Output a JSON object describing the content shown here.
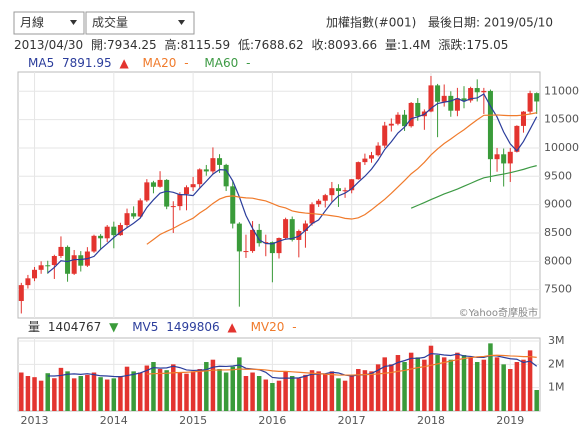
{
  "header": {
    "interval": "月線",
    "indicator": "成交量",
    "index_name": "加權指數(#001)",
    "last_date": "最後日期: 2019/05/10",
    "quote": [
      "2013/04/30",
      "開:7934.25",
      "高:8115.59",
      "低:7688.62",
      "收:8093.66",
      "量:1.4M",
      "漲跌:175.05"
    ],
    "up_arrow": "▲",
    "down_arrow": "▼",
    "missing": "-"
  },
  "chart_data": {
    "type": "candlestick",
    "categories": [
      null,
      null,
      "2013",
      null,
      null,
      null,
      null,
      null,
      null,
      null,
      null,
      null,
      null,
      null,
      "2014",
      null,
      null,
      null,
      null,
      null,
      null,
      null,
      null,
      null,
      null,
      null,
      "2015",
      null,
      null,
      null,
      null,
      null,
      null,
      null,
      null,
      null,
      null,
      null,
      "2016",
      null,
      null,
      null,
      null,
      null,
      null,
      null,
      null,
      null,
      null,
      null,
      "2017",
      null,
      null,
      null,
      null,
      null,
      null,
      null,
      null,
      null,
      null,
      null,
      "2018",
      null,
      null,
      null,
      null,
      null,
      null,
      null,
      null,
      null,
      null,
      null,
      "2019",
      null,
      null,
      null,
      null
    ],
    "open": [
      7300,
      7580,
      7700,
      7850,
      7930,
      7934.25,
      8094,
      8254,
      7780,
      8107,
      7923,
      8173,
      8450,
      8406,
      8611,
      8462,
      8640,
      8849,
      8791,
      9075,
      9393,
      9315,
      9436,
      8966,
      8974,
      9187,
      9307,
      9361,
      9622,
      9586,
      9820,
      9701,
      9323,
      8665,
      8175,
      8181,
      8554,
      8320,
      8338,
      8145,
      8411,
      8744,
      8377,
      8535,
      8667,
      9007,
      9069,
      9167,
      9290,
      9240,
      9254,
      9448,
      9750,
      9812,
      9872,
      10041,
      10395,
      10427,
      10586,
      10384,
      10794,
      10560,
      10643,
      11104,
      10815,
      10919,
      10657,
      10875,
      10837,
      11057,
      10983,
      11006,
      9802,
      9888,
      9727,
      9932,
      10389,
      10641,
      10967
    ],
    "high": [
      7620,
      7760,
      7900,
      8000,
      8010,
      8115.59,
      8440,
      8280,
      8200,
      8180,
      8250,
      8470,
      8480,
      8640,
      8700,
      8680,
      8930,
      8970,
      9110,
      9450,
      9420,
      9590,
      9450,
      9060,
      9220,
      9340,
      9490,
      9640,
      9700,
      10010,
      9890,
      9720,
      9420,
      8690,
      8470,
      8710,
      8660,
      8470,
      8350,
      8420,
      8770,
      8790,
      8560,
      8720,
      9040,
      9100,
      9190,
      9400,
      9360,
      9300,
      9450,
      9760,
      9900,
      9930,
      10100,
      10460,
      10520,
      10630,
      10670,
      10810,
      10880,
      10680,
      11270,
      11130,
      11120,
      11000,
      11060,
      11090,
      11080,
      11210,
      11060,
      11030,
      10000,
      9990,
      10000,
      10400,
      10650,
      11010,
      10980
    ],
    "low": [
      7080,
      7520,
      7650,
      7780,
      7780,
      7688.62,
      8060,
      7640,
      7760,
      7820,
      7900,
      8150,
      8220,
      8340,
      8230,
      8450,
      8590,
      8750,
      8780,
      9050,
      9200,
      9300,
      8920,
      8500,
      8900,
      8900,
      9240,
      9300,
      9510,
      9540,
      9560,
      9240,
      8580,
      7200,
      8060,
      8150,
      8260,
      8090,
      7630,
      8050,
      8380,
      8350,
      8070,
      8240,
      8630,
      8960,
      8950,
      9050,
      8960,
      9120,
      9200,
      9440,
      9700,
      9740,
      9850,
      10000,
      10290,
      10400,
      10300,
      10360,
      10480,
      10320,
      10630,
      10190,
      10730,
      10550,
      10560,
      10700,
      10800,
      10820,
      10600,
      9400,
      9580,
      9320,
      9400,
      9920,
      10270,
      10600,
      10600
    ],
    "close": [
      7580,
      7700,
      7850,
      7930,
      7920,
      8093.66,
      8254,
      7780,
      8107,
      7923,
      8173,
      8450,
      8406,
      8611,
      8462,
      8640,
      8849,
      8791,
      9075,
      9393,
      9315,
      9436,
      8966,
      8974,
      9187,
      9307,
      9361,
      9622,
      9586,
      9820,
      9701,
      9323,
      8665,
      8175,
      8181,
      8554,
      8320,
      8338,
      8145,
      8411,
      8744,
      8377,
      8535,
      8667,
      9007,
      9069,
      9167,
      9290,
      9240,
      9254,
      9448,
      9750,
      9812,
      9872,
      10041,
      10395,
      10427,
      10586,
      10384,
      10794,
      10560,
      10643,
      11104,
      10815,
      10919,
      10657,
      10875,
      10837,
      11057,
      10983,
      11006,
      9802,
      9888,
      9727,
      9932,
      10389,
      10641,
      10967,
      10820
    ],
    "up_color": "#e3342f",
    "down_color": "#3a9b3a",
    "ylim": [
      7000,
      11340
    ],
    "yticks": [
      7500,
      8000,
      8500,
      9000,
      9500,
      10000,
      10500,
      11000
    ],
    "grid": true,
    "series": [
      {
        "name": "MA5",
        "color": "#2c3e9c",
        "values": [
          null,
          null,
          null,
          null,
          7796,
          7891.95,
          8010,
          7996,
          8031,
          8032,
          8047,
          8087,
          8212,
          8313,
          8420,
          8514,
          8594,
          8671,
          8763,
          8950,
          9085,
          9202,
          9237,
          9217,
          9176,
          9174,
          9159,
          9290,
          9413,
          9539,
          9618,
          9610,
          9419,
          9137,
          8809,
          8580,
          8379,
          8314,
          8308,
          8354,
          8392,
          8403,
          8442,
          8547,
          8666,
          8731,
          8889,
          9040,
          9155,
          9204,
          9280,
          9396,
          9501,
          9627,
          9785,
          9974,
          10109,
          10264,
          10367,
          10517,
          10550,
          10593,
          10697,
          10783,
          10808,
          10828,
          10874,
          10821,
          10869,
          10882,
          10952,
          10737,
          10547,
          10281,
          10071,
          9948,
          10115,
          10331,
          10550
        ]
      },
      {
        "name": "MA20",
        "color": "#f07b2c",
        "values": [
          null,
          null,
          null,
          null,
          null,
          null,
          null,
          null,
          null,
          null,
          null,
          null,
          null,
          null,
          null,
          null,
          null,
          null,
          null,
          8300,
          8385,
          8473,
          8529,
          8581,
          8645,
          8705,
          8761,
          8853,
          8927,
          9021,
          9098,
          9141,
          9154,
          9133,
          9119,
          9114,
          9088,
          9065,
          9019,
          8970,
          8941,
          8888,
          8866,
          8851,
          8842,
          8830,
          8820,
          8804,
          8787,
          8758,
          8746,
          8767,
          8824,
          8909,
          9002,
          9094,
          9199,
          9312,
          9424,
          9543,
          9634,
          9747,
          9876,
          9983,
          10079,
          10158,
          10243,
          10321,
          10412,
          10498,
          10576,
          10578,
          10582,
          10575,
          10570,
          10570,
          10580,
          10599,
          10621
        ]
      },
      {
        "name": "MA60",
        "color": "#3d9a44",
        "values": [
          null,
          null,
          null,
          null,
          null,
          null,
          null,
          null,
          null,
          null,
          null,
          null,
          null,
          null,
          null,
          null,
          null,
          null,
          null,
          null,
          null,
          null,
          null,
          null,
          null,
          null,
          null,
          null,
          null,
          null,
          null,
          null,
          null,
          null,
          null,
          null,
          null,
          null,
          null,
          null,
          null,
          null,
          null,
          null,
          null,
          null,
          null,
          null,
          null,
          null,
          null,
          null,
          null,
          null,
          null,
          null,
          null,
          null,
          null,
          8938,
          8987,
          9036,
          9090,
          9138,
          9189,
          9231,
          9275,
          9326,
          9375,
          9426,
          9473,
          9495,
          9520,
          9539,
          9564,
          9593,
          9622,
          9659,
          9688
        ]
      }
    ],
    "volume": {
      "name": "量",
      "values": [
        1650000,
        1500000,
        1450000,
        1300000,
        1620000,
        1404767,
        1850000,
        1700000,
        1400000,
        1500000,
        1550000,
        1650000,
        1450000,
        1350000,
        1400000,
        1500000,
        1900000,
        1700000,
        1650000,
        1950000,
        2100000,
        1800000,
        1750000,
        2000000,
        1650000,
        1600000,
        1700000,
        1800000,
        2100000,
        2200000,
        1800000,
        1650000,
        1900000,
        2300000,
        1500000,
        1650000,
        1500000,
        1350000,
        1200000,
        1300000,
        1700000,
        1500000,
        1400000,
        1550000,
        1750000,
        1700000,
        1600000,
        1700000,
        1400000,
        1300000,
        1500000,
        1800000,
        1750000,
        1700000,
        2000000,
        2300000,
        2000000,
        2400000,
        2100000,
        2500000,
        2300000,
        2200000,
        2800000,
        2400000,
        2300000,
        2200000,
        2500000,
        2400000,
        2300000,
        2100000,
        2200000,
        2900000,
        2300000,
        2000000,
        1800000,
        2100000,
        2200000,
        2600000,
        900000
      ],
      "ylim": [
        0,
        3130000
      ],
      "yticks": [
        {
          "value": 1000000,
          "label": "1M"
        },
        {
          "value": 2000000,
          "label": "2M"
        },
        {
          "value": 3000000,
          "label": "3M"
        }
      ],
      "series": [
        {
          "name": "MV5",
          "color": "#2c3e9c",
          "values": [
            null,
            null,
            null,
            null,
            1504000,
            1499806,
            1525000,
            1575000,
            1591000,
            1571000,
            1600000,
            1560000,
            1510000,
            1500000,
            1480000,
            1470000,
            1520000,
            1570000,
            1630000,
            1740000,
            1860000,
            1840000,
            1850000,
            1920000,
            1860000,
            1760000,
            1740000,
            1750000,
            1770000,
            1880000,
            1920000,
            1910000,
            1930000,
            1970000,
            1830000,
            1800000,
            1770000,
            1660000,
            1440000,
            1410000,
            1410000,
            1410000,
            1420000,
            1490000,
            1580000,
            1580000,
            1600000,
            1660000,
            1630000,
            1540000,
            1500000,
            1540000,
            1550000,
            1610000,
            1750000,
            1910000,
            1950000,
            2080000,
            2160000,
            2260000,
            2260000,
            2300000,
            2460000,
            2440000,
            2400000,
            2380000,
            2440000,
            2360000,
            2340000,
            2300000,
            2300000,
            2380000,
            2360000,
            2300000,
            2240000,
            2220000,
            2080000,
            2140000,
            1920000
          ]
        },
        {
          "name": "MV20",
          "color": "#f07b2c",
          "values": [
            null,
            null,
            null,
            null,
            null,
            null,
            null,
            null,
            null,
            null,
            null,
            null,
            null,
            null,
            null,
            null,
            null,
            null,
            null,
            1580000,
            1600000,
            1610000,
            1620000,
            1640000,
            1650000,
            1660000,
            1680000,
            1700000,
            1720000,
            1750000,
            1760000,
            1760000,
            1770000,
            1800000,
            1790000,
            1790000,
            1780000,
            1760000,
            1720000,
            1700000,
            1700000,
            1680000,
            1660000,
            1640000,
            1620000,
            1600000,
            1580000,
            1560000,
            1540000,
            1540000,
            1540000,
            1550000,
            1560000,
            1570000,
            1590000,
            1620000,
            1650000,
            1700000,
            1740000,
            1800000,
            1860000,
            1900000,
            1960000,
            2020000,
            2080000,
            2140000,
            2200000,
            2250000,
            2290000,
            2320000,
            2340000,
            2380000,
            2390000,
            2380000,
            2360000,
            2350000,
            2330000,
            2330000,
            2300000
          ]
        }
      ]
    },
    "watermark": "©Yahoo奇摩股市"
  }
}
